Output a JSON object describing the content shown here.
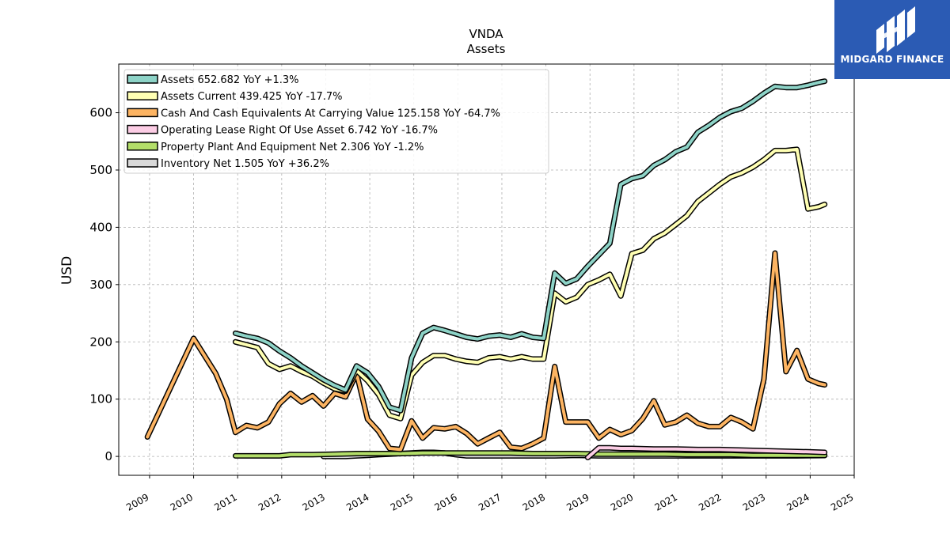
{
  "logo": {
    "text": "MIDGARD FINANCE",
    "color": "#2b5bb4"
  },
  "chart_data": {
    "type": "line",
    "title": "VNDA",
    "subtitle": "Assets",
    "ylabel": "USD",
    "xlabel": "",
    "xlim": [
      2008.3,
      2025.0
    ],
    "ylim": [
      -33,
      685
    ],
    "yticks": [
      0,
      100,
      200,
      300,
      400,
      500,
      600
    ],
    "xticks": [
      2009,
      2010,
      2011,
      2012,
      2013,
      2014,
      2015,
      2016,
      2017,
      2018,
      2019,
      2020,
      2021,
      2022,
      2023,
      2024,
      2025
    ],
    "grid": true,
    "legend_position": "top-left",
    "series": [
      {
        "name": "Assets",
        "legend": "Assets  652.682 YoY +1.3%",
        "color": "#8dd3c7",
        "x": [
          2010.95,
          2011.2,
          2011.45,
          2011.7,
          2011.95,
          2012.2,
          2012.45,
          2012.7,
          2012.95,
          2013.2,
          2013.45,
          2013.7,
          2013.95,
          2014.2,
          2014.45,
          2014.7,
          2014.95,
          2015.2,
          2015.45,
          2015.7,
          2015.95,
          2016.2,
          2016.45,
          2016.7,
          2016.95,
          2017.2,
          2017.45,
          2017.7,
          2017.95,
          2018.2,
          2018.45,
          2018.7,
          2018.95,
          2019.2,
          2019.45,
          2019.7,
          2019.95,
          2020.2,
          2020.45,
          2020.7,
          2020.95,
          2021.2,
          2021.45,
          2021.7,
          2021.95,
          2022.2,
          2022.45,
          2022.7,
          2022.95,
          2023.2,
          2023.45,
          2023.7,
          2023.95,
          2024.2,
          2024.33
        ],
        "y": [
          215,
          210,
          206,
          198,
          184,
          172,
          158,
          146,
          134,
          124,
          116,
          158,
          146,
          122,
          86,
          80,
          172,
          215,
          225,
          220,
          214,
          208,
          205,
          210,
          212,
          208,
          214,
          208,
          206,
          320,
          302,
          310,
          332,
          352,
          372,
          475,
          485,
          490,
          508,
          518,
          532,
          540,
          566,
          578,
          592,
          602,
          608,
          620,
          634,
          646,
          644,
          644,
          648,
          653,
          655
        ]
      },
      {
        "name": "Assets Current",
        "legend": "Assets Current  439.425 YoY -17.7%",
        "color": "#ffffb3",
        "x": [
          2010.95,
          2011.2,
          2011.45,
          2011.7,
          2011.95,
          2012.2,
          2012.45,
          2012.7,
          2012.95,
          2013.2,
          2013.45,
          2013.7,
          2013.95,
          2014.2,
          2014.45,
          2014.7,
          2014.95,
          2015.2,
          2015.45,
          2015.7,
          2015.95,
          2016.2,
          2016.45,
          2016.7,
          2016.95,
          2017.2,
          2017.45,
          2017.7,
          2017.95,
          2018.2,
          2018.45,
          2018.7,
          2018.95,
          2019.2,
          2019.45,
          2019.7,
          2019.95,
          2020.2,
          2020.45,
          2020.7,
          2020.95,
          2021.2,
          2021.45,
          2021.7,
          2021.95,
          2022.2,
          2022.45,
          2022.7,
          2022.95,
          2023.2,
          2023.45,
          2023.7,
          2023.95,
          2024.2,
          2024.33
        ],
        "y": [
          200,
          195,
          190,
          162,
          152,
          158,
          148,
          140,
          128,
          118,
          114,
          150,
          132,
          108,
          72,
          66,
          142,
          164,
          176,
          176,
          170,
          166,
          164,
          172,
          174,
          170,
          174,
          170,
          170,
          285,
          270,
          278,
          300,
          308,
          318,
          280,
          354,
          360,
          380,
          390,
          405,
          420,
          445,
          460,
          475,
          488,
          495,
          505,
          518,
          534,
          534,
          536,
          432,
          436,
          440
        ]
      },
      {
        "name": "Cash And Cash Equivalents At Carrying Value",
        "legend": "Cash And Cash Equivalents At Carrying Value  125.158 YoY -64.7%",
        "color": "#fdb462",
        "x": [
          2008.95,
          2010.0,
          2010.5,
          2010.75,
          2010.95,
          2011.2,
          2011.45,
          2011.7,
          2011.95,
          2012.2,
          2012.45,
          2012.7,
          2012.95,
          2013.2,
          2013.45,
          2013.7,
          2013.95,
          2014.2,
          2014.45,
          2014.7,
          2014.95,
          2015.2,
          2015.45,
          2015.7,
          2015.95,
          2016.2,
          2016.45,
          2016.7,
          2016.95,
          2017.2,
          2017.45,
          2017.7,
          2017.95,
          2018.2,
          2018.45,
          2018.7,
          2018.95,
          2019.2,
          2019.45,
          2019.7,
          2019.95,
          2020.2,
          2020.45,
          2020.7,
          2020.95,
          2021.2,
          2021.45,
          2021.7,
          2021.95,
          2022.2,
          2022.45,
          2022.7,
          2022.95,
          2023.2,
          2023.45,
          2023.7,
          2023.95,
          2024.2,
          2024.33
        ],
        "y": [
          34,
          206,
          145,
          100,
          42,
          54,
          50,
          60,
          92,
          110,
          95,
          106,
          88,
          110,
          104,
          145,
          65,
          44,
          14,
          12,
          62,
          32,
          50,
          48,
          52,
          40,
          22,
          32,
          42,
          16,
          14,
          22,
          32,
          157,
          60,
          60,
          60,
          32,
          47,
          38,
          45,
          66,
          97,
          55,
          60,
          72,
          58,
          52,
          52,
          68,
          60,
          48,
          135,
          355,
          148,
          185,
          135,
          127,
          125
        ]
      },
      {
        "name": "Operating Lease Right Of Use Asset",
        "legend": "Operating Lease Right Of Use Asset  6.742 YoY -16.7%",
        "color": "#fccde5",
        "x": [
          2018.95,
          2019.2,
          2019.45,
          2019.7,
          2019.95,
          2020.45,
          2020.95,
          2021.45,
          2021.95,
          2022.45,
          2022.95,
          2023.45,
          2023.95,
          2024.33
        ],
        "y": [
          -2,
          15,
          15,
          14,
          14,
          13,
          13,
          12,
          12,
          11,
          10,
          9,
          8,
          7
        ]
      },
      {
        "name": "Property Plant And Equipment Net",
        "legend": "Property Plant And Equipment Net  2.306 YoY -1.2%",
        "color": "#b3de69",
        "x": [
          2010.95,
          2011.45,
          2011.95,
          2012.2,
          2012.7,
          2013.2,
          2013.7,
          2014.2,
          2014.7,
          2015.2,
          2015.7,
          2016.2,
          2016.7,
          2017.2,
          2017.7,
          2018.2,
          2018.7,
          2019.2,
          2019.7,
          2020.2,
          2020.7,
          2021.2,
          2021.7,
          2022.2,
          2022.7,
          2023.2,
          2023.7,
          2024.33
        ],
        "y": [
          1,
          1,
          1,
          3,
          3,
          4,
          5,
          5,
          5,
          6,
          6,
          6,
          6,
          6,
          5,
          5,
          5,
          4,
          4,
          4,
          4,
          3,
          3,
          3,
          2,
          2,
          2,
          2
        ]
      },
      {
        "name": "Inventory Net",
        "legend": "Inventory Net  1.505 YoY +36.2%",
        "color": "#d9d9d9",
        "x": [
          2012.95,
          2013.2,
          2013.45,
          2013.7,
          2013.95,
          2014.2,
          2014.45,
          2014.7,
          2014.95,
          2015.2,
          2015.45,
          2015.7,
          2015.95,
          2016.2,
          2016.7,
          2017.2,
          2017.7,
          2018.2,
          2018.7,
          2019.2,
          2019.7,
          2020.2,
          2020.7,
          2021.2,
          2021.7,
          2022.2,
          2022.7,
          2023.2,
          2023.7,
          2024.33
        ],
        "y": [
          0,
          0,
          0,
          1,
          2,
          3,
          4,
          5,
          6,
          7,
          7,
          6,
          3,
          1,
          1,
          1,
          1,
          1,
          2,
          1,
          1,
          1,
          1,
          1,
          1,
          1,
          1,
          1,
          1,
          1.5
        ]
      }
    ]
  }
}
